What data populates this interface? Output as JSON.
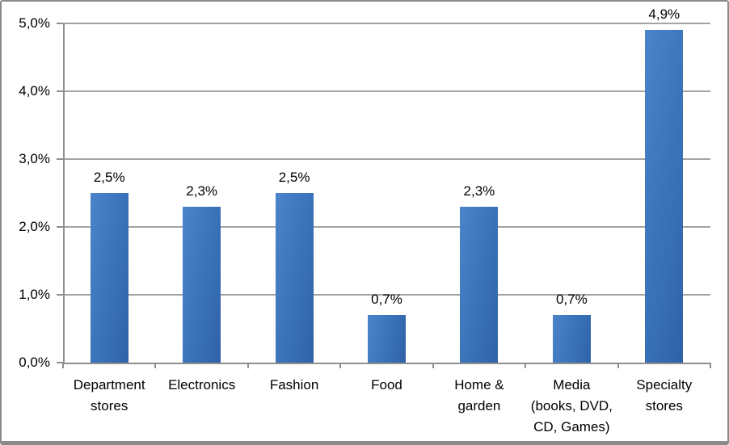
{
  "chart_data": {
    "type": "bar",
    "title": "",
    "xlabel": "",
    "ylabel": "",
    "categories": [
      "Department\nstores",
      "Electronics",
      "Fashion",
      "Food",
      "Home &\ngarden",
      "Media\n(books, DVD,\nCD, Games)",
      "Specialty\nstores"
    ],
    "values": [
      2.5,
      2.3,
      2.5,
      0.7,
      2.3,
      0.7,
      4.9
    ],
    "data_labels": [
      "2,5%",
      "2,3%",
      "2,5%",
      "0,7%",
      "2,3%",
      "0,7%",
      "4,9%"
    ],
    "y_ticks": [
      {
        "label": "5,0%",
        "value": 5.0
      },
      {
        "label": "4,0%",
        "value": 4.0
      },
      {
        "label": "3,0%",
        "value": 3.0
      },
      {
        "label": "2,0%",
        "value": 2.0
      },
      {
        "label": "1,0%",
        "value": 1.0
      },
      {
        "label": "0,0%",
        "value": 0.0
      }
    ],
    "ylim": [
      0,
      5.0
    ],
    "grid": true,
    "legend": false,
    "decimal_separator": ",",
    "colors": {
      "bar_gradient_start": "#4C84CB",
      "bar_gradient_end": "#2F62A7",
      "gridline": "#A3A3A3",
      "axis": "#8F8F8F",
      "frame_border": "#8A8A8A",
      "text": "#000000",
      "background": "#FFFFFF"
    }
  }
}
